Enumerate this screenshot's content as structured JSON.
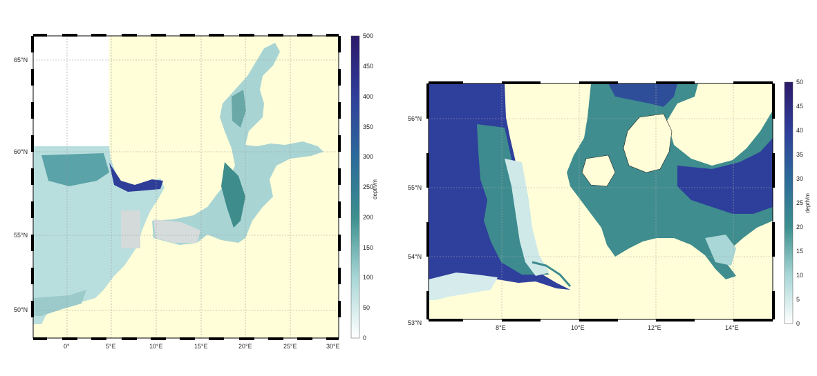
{
  "maps": [
    {
      "lat_labels": [
        "65°N",
        "60°N",
        "55°N",
        "50°N"
      ],
      "lon_labels": [
        "0°",
        "5°E",
        "10°E",
        "15°E",
        "20°E",
        "25°E",
        "30°E"
      ],
      "colorbar": {
        "title": "depth/m",
        "ticks": [
          "500",
          "450",
          "400",
          "350",
          "300",
          "250",
          "200",
          "150",
          "100",
          "50",
          "0"
        ],
        "range": [
          0,
          500
        ]
      },
      "land_color": "#fffed8",
      "deep_color": "#2a1f6e"
    },
    {
      "lat_labels": [
        "56°N",
        "55°N",
        "54°N",
        "53°N"
      ],
      "lon_labels": [
        "8°E",
        "10°E",
        "12°E",
        "14°E"
      ],
      "colorbar": {
        "title": "depth/m",
        "ticks": [
          "50",
          "45",
          "40",
          "35",
          "30",
          "25",
          "20",
          "15",
          "10",
          "5",
          "0"
        ],
        "range": [
          0,
          50
        ]
      },
      "land_color": "#fffed8",
      "deep_color": "#2a1f6e"
    }
  ]
}
